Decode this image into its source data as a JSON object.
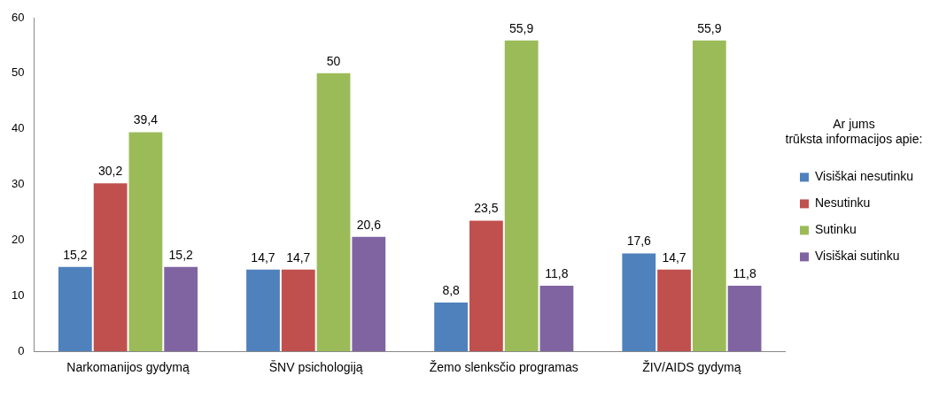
{
  "chart_data": {
    "type": "bar",
    "categories": [
      "Narkomanijos gydymą",
      "ŠNV psichologiją",
      "Žemo slenksčio programas",
      "ŽIV/AIDS gydymą"
    ],
    "series": [
      {
        "name": "Visiškai nesutinku",
        "color": "#4f81bd",
        "values": [
          15.2,
          14.7,
          8.8,
          17.6
        ],
        "value_labels": [
          "15,2",
          "14,7",
          "8,8",
          "17,6"
        ]
      },
      {
        "name": "Nesutinku",
        "color": "#c0504d",
        "values": [
          30.2,
          14.7,
          23.5,
          14.7
        ],
        "value_labels": [
          "30,2",
          "14,7",
          "23,5",
          "14,7"
        ]
      },
      {
        "name": "Sutinku",
        "color": "#9bbb59",
        "values": [
          39.4,
          50,
          55.9,
          55.9
        ],
        "value_labels": [
          "39,4",
          "50",
          "55,9",
          "55,9"
        ]
      },
      {
        "name": "Visiškai sutinku",
        "color": "#8064a2",
        "values": [
          15.2,
          20.6,
          11.8,
          11.8
        ],
        "value_labels": [
          "15,2",
          "20,6",
          "11,8",
          "11,8"
        ]
      }
    ],
    "legend_title": "Ar jums trūksta informacijos apie:",
    "legend": "right",
    "grid": false,
    "ylim": [
      0,
      60
    ],
    "yticks": [
      0,
      10,
      20,
      30,
      40,
      50,
      60
    ]
  }
}
